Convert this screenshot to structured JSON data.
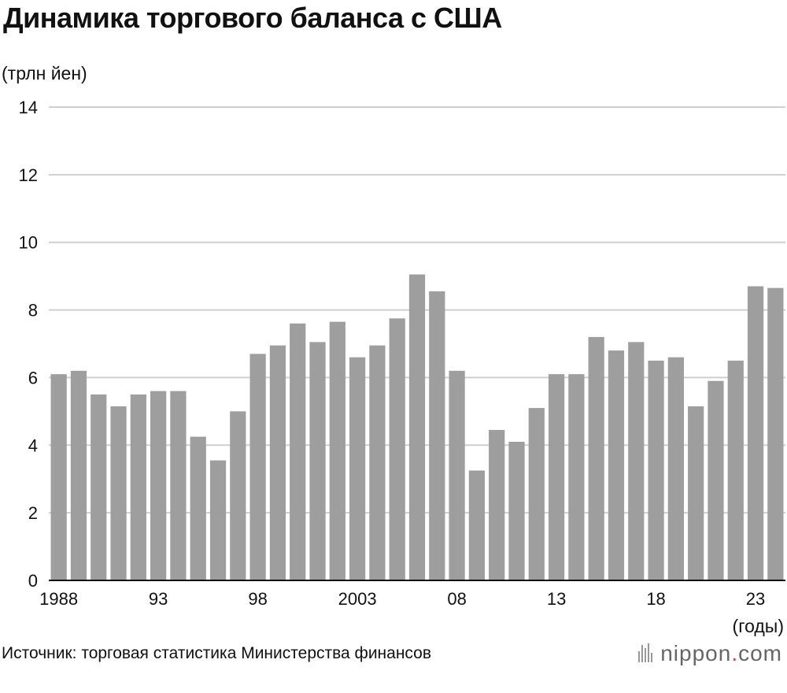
{
  "title": "Динамика торгового баланса с США",
  "unit_label": "(трлн йен)",
  "x_unit_label": "(годы)",
  "source": "Источник: торговая статистика Министерства финансов",
  "brand": {
    "name": "nippon",
    "dot": ".",
    "tld": "com"
  },
  "colors": {
    "bar": "#9e9e9e",
    "grid": "#cfcfcf",
    "axis": "#111111"
  },
  "chart_data": {
    "type": "bar",
    "title": "Динамика торгового баланса с США",
    "ylabel": "(трлн йен)",
    "xlabel": "(годы)",
    "ylim": [
      0,
      14
    ],
    "yticks": [
      0,
      2,
      4,
      6,
      8,
      10,
      12,
      14
    ],
    "grid": true,
    "categories": [
      "1988",
      "1989",
      "1990",
      "1991",
      "1992",
      "1993",
      "1994",
      "1995",
      "1996",
      "1997",
      "1998",
      "1999",
      "2000",
      "2001",
      "2002",
      "2003",
      "2004",
      "2005",
      "2006",
      "2007",
      "2008",
      "2009",
      "2010",
      "2011",
      "2012",
      "2013",
      "2014",
      "2015",
      "2016",
      "2017",
      "2018",
      "2019",
      "2020",
      "2021",
      "2022",
      "2023",
      "2024"
    ],
    "xtick_labels": [
      {
        "index": 0,
        "label": "1988"
      },
      {
        "index": 5,
        "label": "93"
      },
      {
        "index": 10,
        "label": "98"
      },
      {
        "index": 15,
        "label": "2003"
      },
      {
        "index": 20,
        "label": "08"
      },
      {
        "index": 25,
        "label": "13"
      },
      {
        "index": 30,
        "label": "18"
      },
      {
        "index": 35,
        "label": "23"
      }
    ],
    "values": [
      6.1,
      6.2,
      5.5,
      5.15,
      5.5,
      5.6,
      5.6,
      4.25,
      3.55,
      5.0,
      6.7,
      6.95,
      7.6,
      7.05,
      7.65,
      6.6,
      6.95,
      7.75,
      9.05,
      8.55,
      6.2,
      3.25,
      4.45,
      4.1,
      5.1,
      6.1,
      6.1,
      7.2,
      6.8,
      7.05,
      6.5,
      6.6,
      5.15,
      5.9,
      6.5,
      8.7,
      8.65
    ]
  }
}
